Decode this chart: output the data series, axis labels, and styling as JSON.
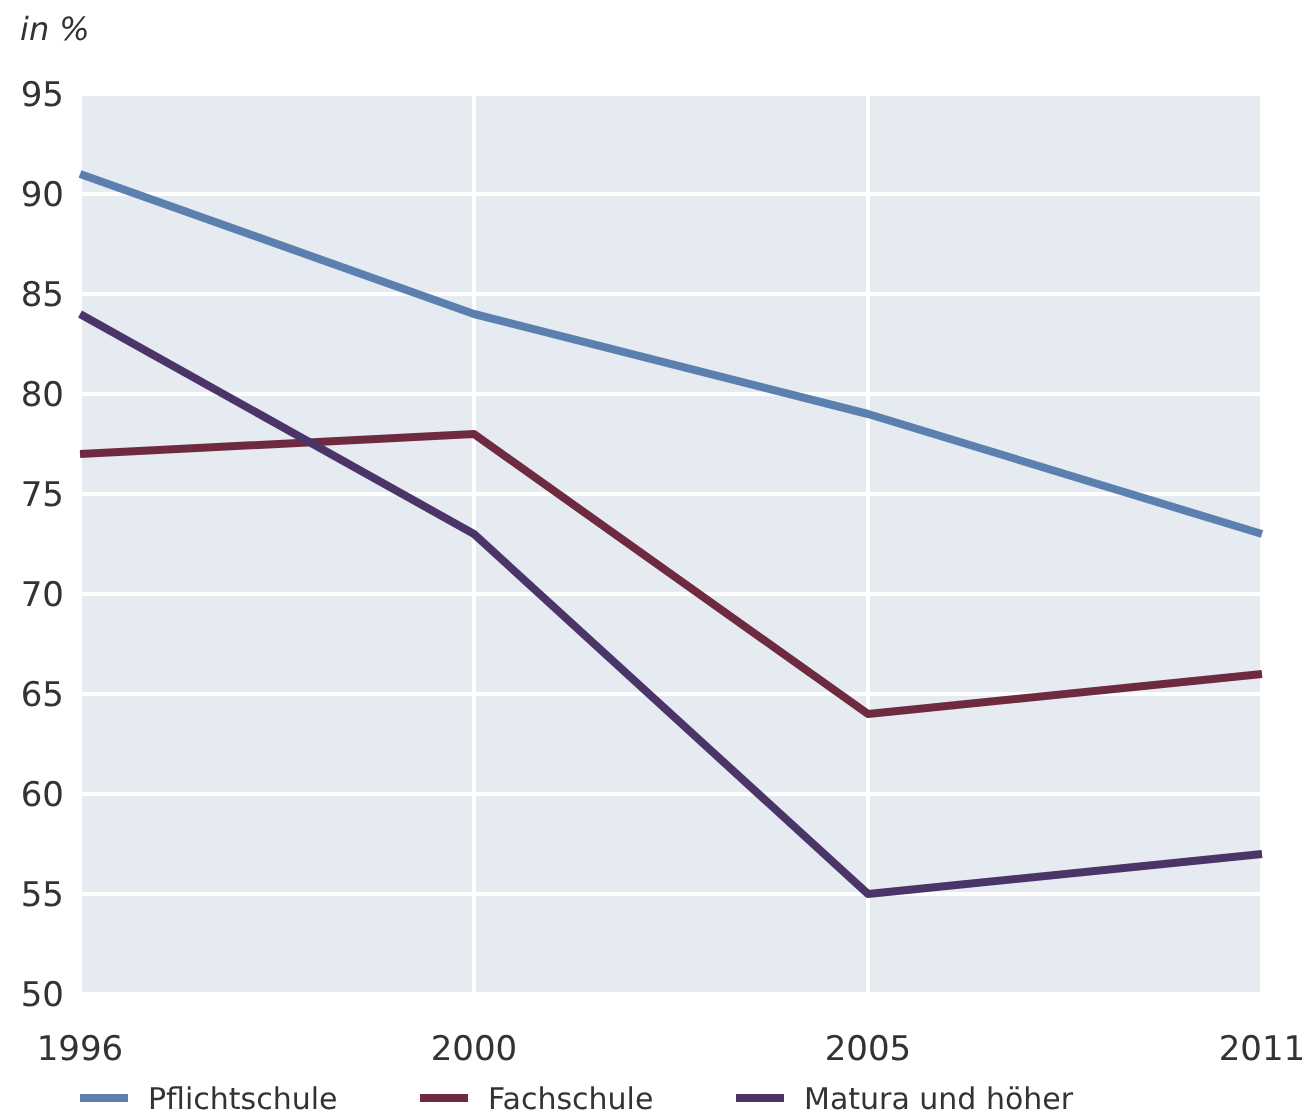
{
  "chart_data": {
    "type": "line",
    "ylabel": "in %",
    "categories": [
      "1996",
      "2000",
      "2005",
      "2011"
    ],
    "series": [
      {
        "name": "Pflichtschule",
        "color": "#5b7fae",
        "values": [
          91,
          84,
          79,
          73
        ]
      },
      {
        "name": "Fachschule",
        "color": "#6e2b3f",
        "values": [
          77,
          78,
          64,
          66
        ]
      },
      {
        "name": "Matura und höher",
        "color": "#4b3468",
        "values": [
          84,
          73,
          55,
          57
        ]
      }
    ],
    "ylim": [
      50,
      95
    ],
    "yticks": [
      50,
      55,
      60,
      65,
      70,
      75,
      80,
      85,
      90,
      95
    ],
    "grid": true,
    "legend": "bottom",
    "marker": "none",
    "line_style": "solid"
  }
}
